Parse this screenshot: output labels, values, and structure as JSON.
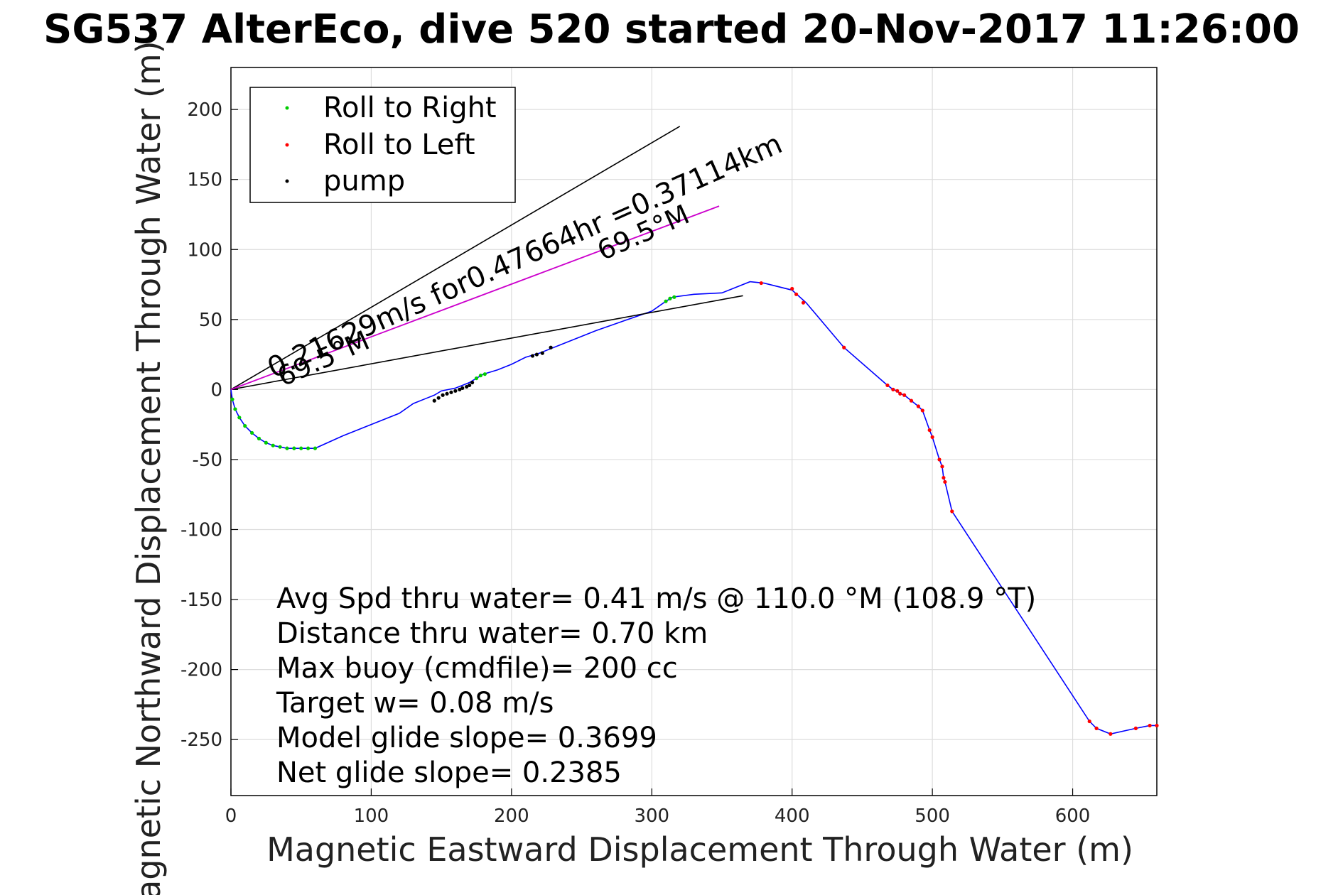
{
  "chart_data": {
    "type": "line",
    "title": "SG537 AlterEco, dive 520 started 20-Nov-2017 11:26:00",
    "xlabel": "Magnetic Eastward Displacement Through Water (m)",
    "ylabel": "Magnetic Northward Displacement Through Water (m)",
    "xlim": [
      0,
      660
    ],
    "ylim": [
      -290,
      230
    ],
    "grid": true,
    "legend_placement": "top-left",
    "x_ticks": [
      0,
      100,
      200,
      300,
      400,
      500,
      600
    ],
    "y_ticks": [
      200,
      150,
      100,
      50,
      0,
      -50,
      -100,
      -150,
      -200,
      -250
    ],
    "legend": [
      {
        "label": "Roll to Right",
        "color": "#00cc00"
      },
      {
        "label": "Roll to Left",
        "color": "#ff0000"
      },
      {
        "label": "pump",
        "color": "#000000"
      }
    ],
    "annotations": {
      "speed_label": "0.21629m/s for0.47664hr =0.37114km",
      "heading_upper": "69.5°M",
      "heading_lower": "69.5°M",
      "stats": [
        "Avg Spd thru water=  0.41 m/s @ 110.0 °M (108.9 °T)",
        "Distance thru water=  0.70 km",
        "Max buoy (cmdfile)= 200 cc",
        "Target w= 0.08 m/s",
        "Model glide slope= 0.3699",
        "Net glide slope= 0.2385"
      ]
    },
    "colors": {
      "track": "#0000ff",
      "avg_line": "#cc00cc",
      "axes": "#000000",
      "grid": "#dddddd"
    },
    "series": [
      {
        "name": "",
        "type": "track",
        "x": [
          0,
          1,
          3,
          6,
          10,
          15,
          20,
          25,
          30,
          35,
          40,
          45,
          50,
          55,
          60,
          80,
          100,
          120,
          130,
          140,
          145,
          150,
          155,
          160,
          165,
          170,
          175,
          180,
          190,
          200,
          210,
          220,
          230,
          240,
          260,
          280,
          300,
          310,
          315,
          330,
          350,
          370,
          380,
          400,
          410,
          437,
          468,
          472,
          475,
          477,
          480,
          485,
          490,
          493,
          498,
          500,
          505,
          507,
          508,
          509,
          514,
          612,
          617,
          627,
          645,
          655,
          660
        ],
        "y": [
          0,
          -7,
          -14,
          -20,
          -26,
          -31,
          -35,
          -38,
          -40,
          -41,
          -42,
          -42,
          -42,
          -42,
          -42,
          -33,
          -25,
          -17,
          -10,
          -6,
          -4,
          -1,
          0,
          1,
          3,
          5,
          8,
          11,
          14,
          18,
          23,
          26,
          30,
          34,
          42,
          49,
          56,
          63,
          66,
          68,
          69,
          77,
          76,
          71,
          62,
          30,
          3,
          0,
          -1,
          -3,
          -4,
          -8,
          -12,
          -15,
          -29,
          -34,
          -50,
          -55,
          -63,
          -66,
          -87,
          -237,
          -242,
          -246,
          -242,
          -240,
          -240
        ]
      },
      {
        "name": "Roll to Right",
        "type": "markers",
        "color": "#00cc00",
        "x": [
          1,
          3,
          6,
          10,
          15,
          20,
          25,
          30,
          35,
          40,
          45,
          50,
          55,
          60,
          175,
          178,
          181,
          310,
          313,
          316
        ],
        "y": [
          -7,
          -14,
          -20,
          -26,
          -31,
          -35,
          -38,
          -40,
          -41,
          -42,
          -42,
          -42,
          -42,
          -42,
          8,
          10,
          11,
          63,
          65,
          66
        ]
      },
      {
        "name": "Roll to Left",
        "type": "markers",
        "color": "#ff0000",
        "x": [
          378,
          400,
          403,
          408,
          437,
          468,
          472,
          475,
          477,
          480,
          485,
          490,
          493,
          498,
          500,
          505,
          507,
          508,
          509,
          514,
          612,
          617,
          627,
          645,
          655,
          660
        ],
        "y": [
          76,
          72,
          68,
          62,
          30,
          3,
          0,
          -1,
          -3,
          -4,
          -8,
          -12,
          -15,
          -29,
          -34,
          -50,
          -55,
          -63,
          -66,
          -87,
          -237,
          -242,
          -246,
          -242,
          -240,
          -240
        ]
      },
      {
        "name": "pump",
        "type": "markers",
        "color": "#000000",
        "x": [
          145,
          148,
          151,
          154,
          157,
          160,
          163,
          165,
          168,
          170,
          172,
          215,
          218,
          222,
          228
        ],
        "y": [
          -8,
          -6,
          -4,
          -3,
          -2,
          -1,
          0,
          1,
          2,
          3,
          5,
          24,
          25,
          26,
          30
        ]
      },
      {
        "name": "",
        "type": "heading-line",
        "color": "#000000",
        "x": [
          0,
          320
        ],
        "y": [
          0,
          188
        ]
      },
      {
        "name": "",
        "type": "heading-line",
        "color": "#000000",
        "x": [
          0,
          365
        ],
        "y": [
          0,
          67
        ]
      },
      {
        "name": "",
        "type": "avg-line",
        "color": "#cc00cc",
        "x": [
          0,
          348
        ],
        "y": [
          0,
          131
        ]
      }
    ]
  }
}
